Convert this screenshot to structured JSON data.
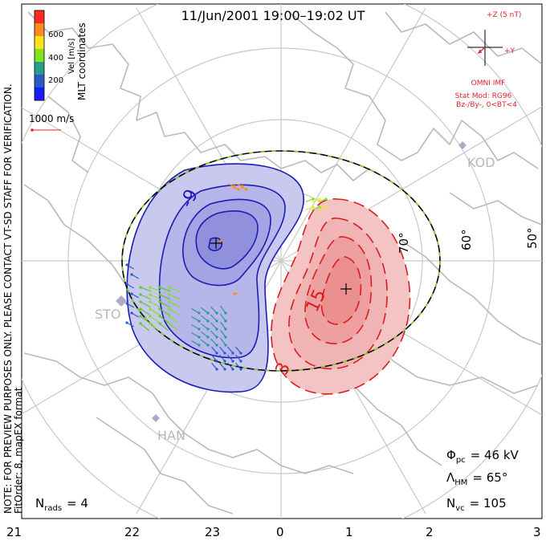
{
  "title": "11/Jun/2001  19:00–19:02  UT",
  "colorbar": {
    "ticks": [
      "600",
      "400",
      "200"
    ],
    "unit": "Vel [m/s]",
    "colors": [
      "#ff2a1e",
      "#ff8a1e",
      "#ffe21e",
      "#7ce61e",
      "#2a9a8c",
      "#2a5ac8",
      "#1a1aff"
    ]
  },
  "coords_label": "MLT coordinates",
  "vector_scale": "1000 m/s",
  "side_note": {
    "line1": "NOTE: FOR PREVIEW PURPOSES ONLY. PLEASE CONTACT VT-SD STAFF FOR VERIFICATION.",
    "line2": "FitOrder: 8, mapEX format"
  },
  "imf": {
    "z_label": "+Z (5 nT)",
    "y_label": "+Y",
    "source": "OMNI IMF",
    "model": "Stat Mod: RG96",
    "condition": "Bz-/By-, 0<BT<4"
  },
  "contours": {
    "neg_label": "-9",
    "pos_label1": "15",
    "pos_label2": "3",
    "neg_fill": "#c9c9ef",
    "pos_fill": "#f4c4c4",
    "neg_color": "#1c1cb4",
    "pos_color": "#d81e1e"
  },
  "lat_labels": [
    "70°",
    "60°",
    "50°"
  ],
  "stations": [
    "KOD",
    "STO",
    "HAN"
  ],
  "stats": {
    "phi_symbol": "Φ",
    "phi_sub": "pc",
    "phi_value": "= 46 kV",
    "lambda_symbol": "Λ",
    "lambda_sub": "HM",
    "lambda_value": "= 65°",
    "n_symbol": "N",
    "nvc_sub": "vc",
    "nvc_value": "= 105",
    "nrads_sub": "rads",
    "nrads_value": "= 4"
  },
  "mlt_labels": [
    "21",
    "22",
    "23",
    "0",
    "1",
    "2",
    "3"
  ]
}
